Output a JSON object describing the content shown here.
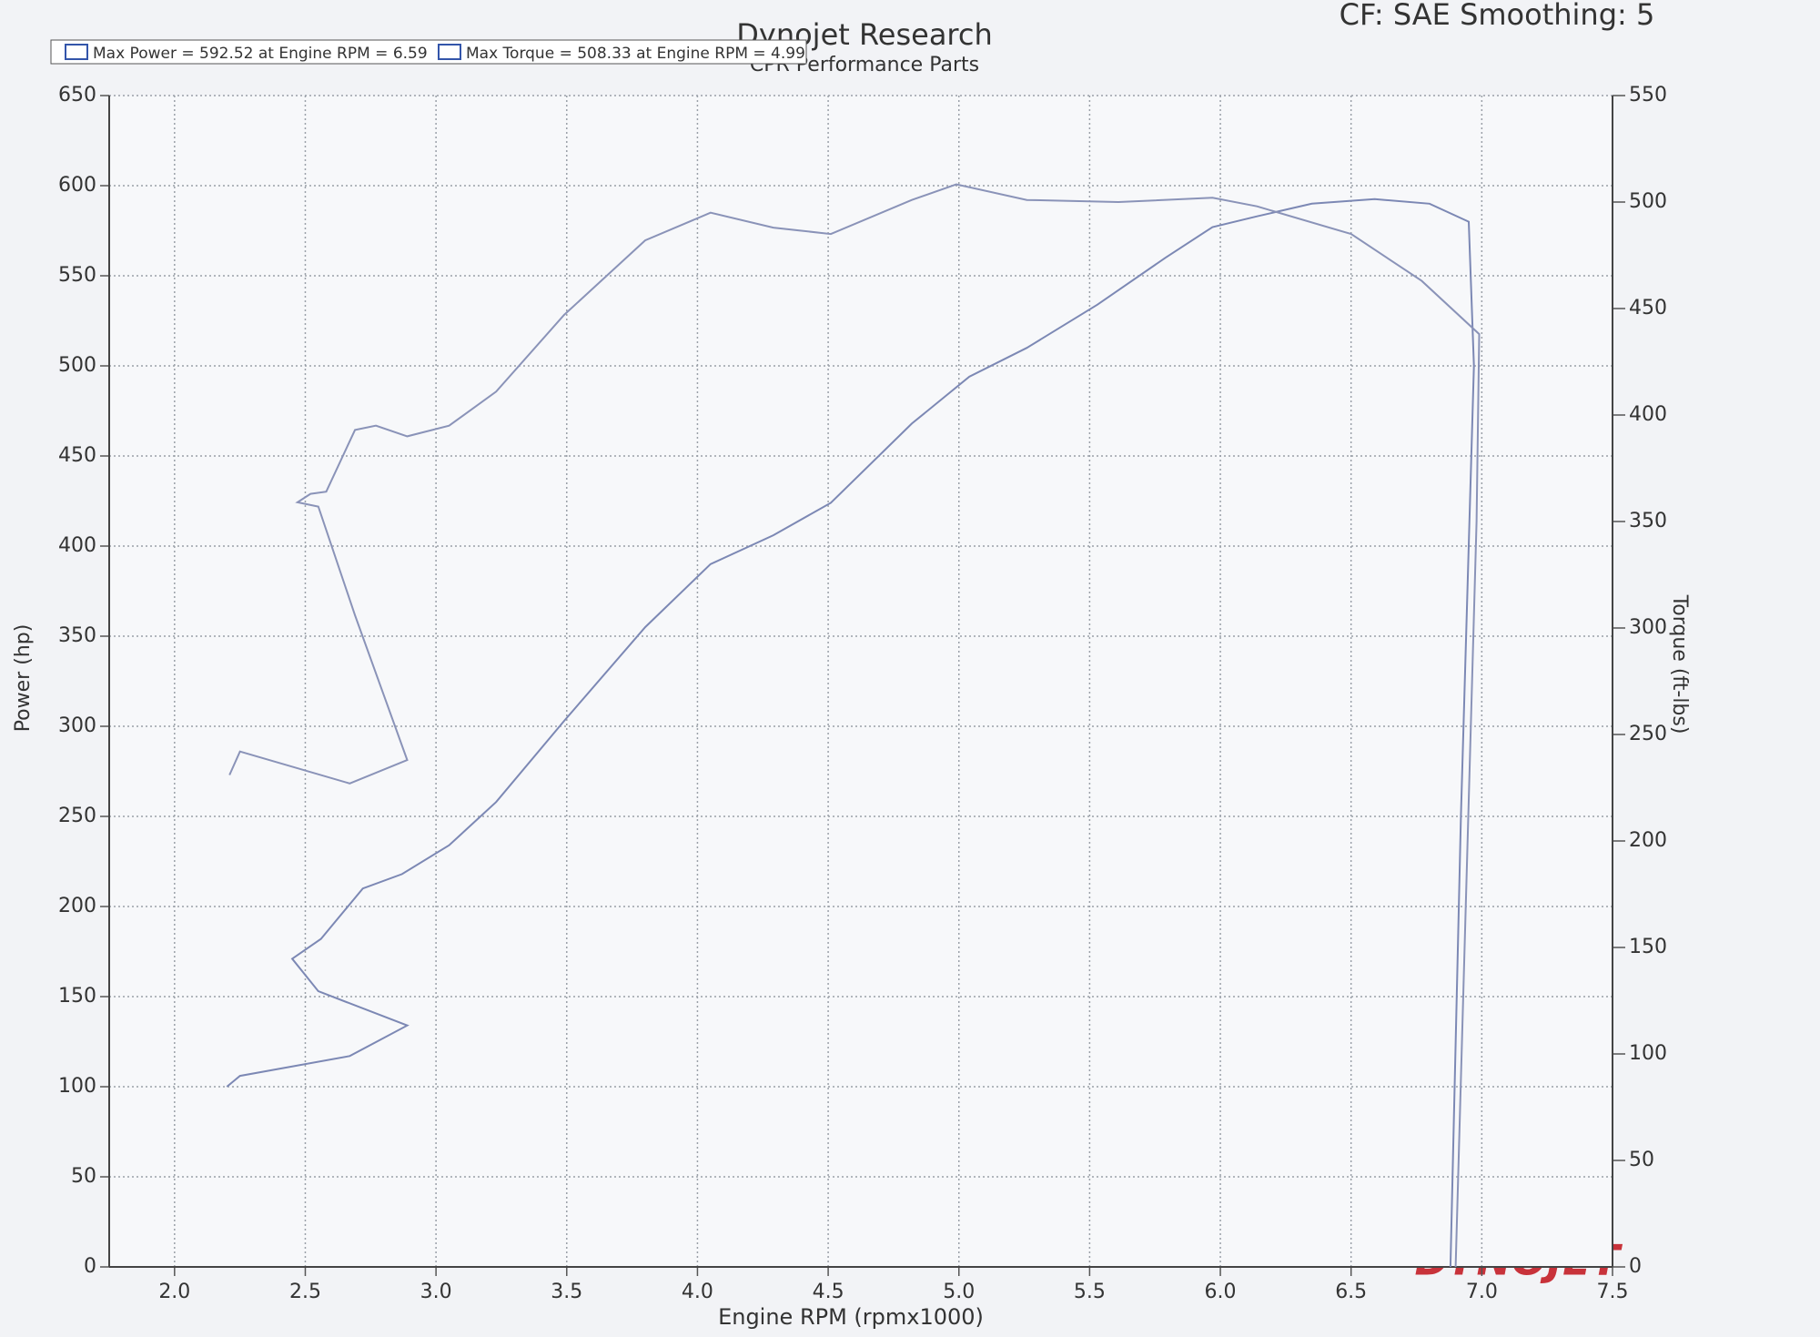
{
  "chart_data": {
    "type": "line",
    "title": "Dynojet Research",
    "subtitle": "CPR Performance Parts",
    "corner_note": "CF: SAE Smoothing: 5",
    "legend": [
      "Max Power = 592.52 at Engine RPM = 6.59",
      "Max Torque = 508.33 at Engine RPM = 4.99"
    ],
    "xlabel": "Engine RPM (rpmx1000)",
    "ylabel": "Power (hp)",
    "y2label": "Torque (ft-lbs)",
    "logo": "DYNOJET",
    "xlim": [
      1.75,
      7.5
    ],
    "xticks": [
      {
        "value": 2,
        "label": "2.0"
      },
      2.5,
      {
        "value": 3,
        "label": "3.0"
      },
      3.5,
      {
        "value": 4,
        "label": "4.0"
      },
      4.5,
      {
        "value": 5,
        "label": "5.0"
      },
      5.5,
      {
        "value": 6,
        "label": "6.0"
      },
      6.5,
      {
        "value": 7,
        "label": "7.0"
      },
      7.5
    ],
    "ylim": [
      0,
      650
    ],
    "yticks": [
      0,
      50,
      100,
      150,
      200,
      250,
      300,
      350,
      400,
      450,
      500,
      550,
      600,
      650
    ],
    "y2lim": [
      0,
      550
    ],
    "y2ticks": [
      0,
      50,
      100,
      150,
      200,
      250,
      300,
      350,
      400,
      450,
      500,
      550
    ],
    "grid": true,
    "series": [
      {
        "color": "#7c88b4",
        "axis": "y",
        "x": [
          2.2,
          2.25,
          2.67,
          2.89,
          2.55,
          2.45,
          2.56,
          2.72,
          2.87,
          3.05,
          3.23,
          3.49,
          3.8,
          4.05,
          4.29,
          4.51,
          4.82,
          5.04,
          5.26,
          5.53,
          5.79,
          5.97,
          6.14,
          6.35,
          6.59,
          6.8,
          6.95,
          6.97,
          6.92,
          6.88
        ],
        "values": [
          100,
          106,
          117,
          134,
          153,
          171,
          182,
          210,
          218,
          234,
          258,
          303,
          355,
          390,
          406,
          424,
          468,
          494,
          510,
          534,
          560,
          577,
          583,
          590,
          592.52,
          590,
          580,
          500,
          250,
          0
        ]
      },
      {
        "color": "#8a93b8",
        "axis": "y2",
        "x": [
          2.21,
          2.25,
          2.67,
          2.89,
          2.69,
          2.55,
          2.47,
          2.52,
          2.58,
          2.69,
          2.77,
          2.89,
          3.05,
          3.23,
          3.49,
          3.8,
          4.05,
          4.29,
          4.51,
          4.82,
          4.99,
          5.26,
          5.61,
          5.97,
          6.14,
          6.5,
          6.77,
          6.99,
          6.98,
          6.9
        ],
        "values": [
          231,
          242,
          227,
          238,
          306,
          357,
          359,
          363,
          364,
          393,
          395,
          390,
          395,
          411,
          447,
          482,
          495,
          488,
          485,
          501,
          508.33,
          501,
          500,
          502,
          498,
          485,
          463,
          438,
          350,
          0
        ]
      }
    ]
  }
}
